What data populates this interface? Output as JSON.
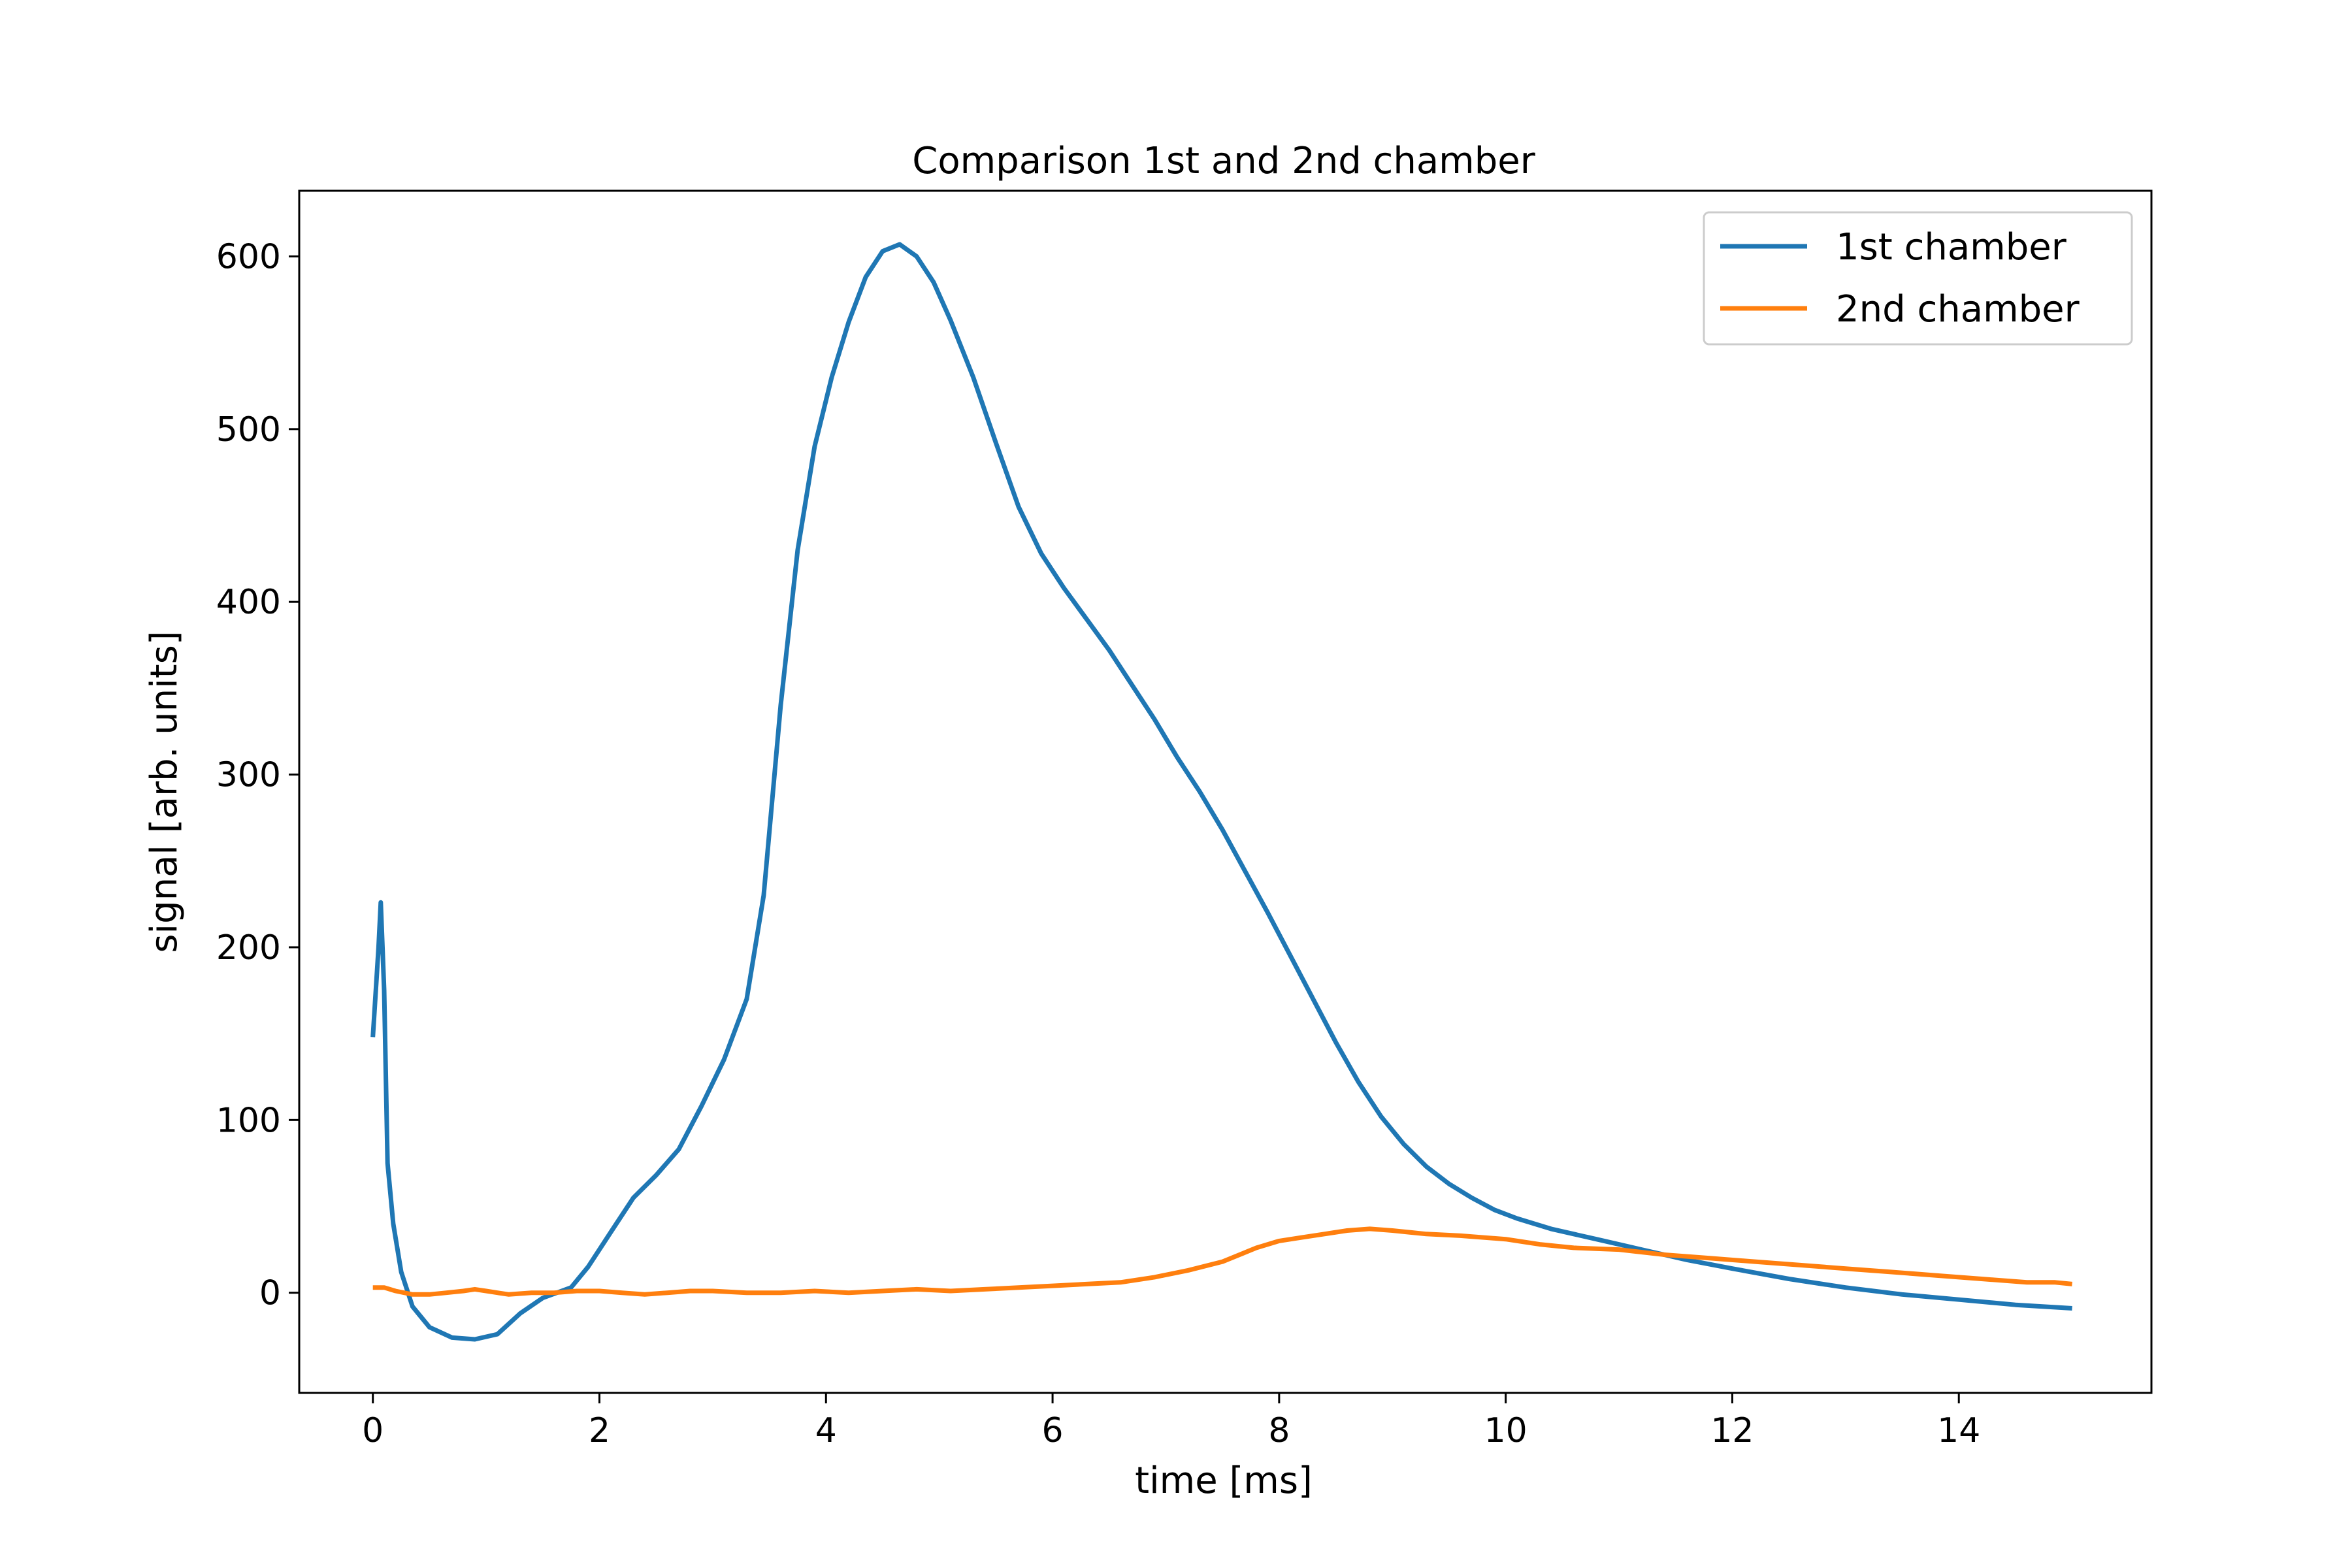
{
  "chart_data": {
    "type": "line",
    "title": "Comparison 1st and 2nd chamber",
    "xlabel": "time [ms]",
    "ylabel": "signal [arb. units]",
    "xlim": [
      -0.65,
      15.7
    ],
    "ylim": [
      -58,
      638
    ],
    "xticks": [
      0,
      2,
      4,
      6,
      8,
      10,
      12,
      14
    ],
    "yticks": [
      0,
      100,
      200,
      300,
      400,
      500,
      600
    ],
    "grid": false,
    "legend": "top-right",
    "series": [
      {
        "name": "1st chamber",
        "color": "#1f77b4",
        "points": [
          [
            0.0,
            148
          ],
          [
            0.05,
            200
          ],
          [
            0.07,
            226
          ],
          [
            0.1,
            175
          ],
          [
            0.13,
            75
          ],
          [
            0.18,
            40
          ],
          [
            0.25,
            12
          ],
          [
            0.35,
            -8
          ],
          [
            0.5,
            -20
          ],
          [
            0.7,
            -26
          ],
          [
            0.9,
            -27
          ],
          [
            1.1,
            -24
          ],
          [
            1.3,
            -12
          ],
          [
            1.5,
            -3
          ],
          [
            1.75,
            3
          ],
          [
            1.9,
            15
          ],
          [
            2.1,
            35
          ],
          [
            2.3,
            55
          ],
          [
            2.5,
            68
          ],
          [
            2.7,
            83
          ],
          [
            2.9,
            108
          ],
          [
            3.1,
            135
          ],
          [
            3.3,
            170
          ],
          [
            3.45,
            230
          ],
          [
            3.6,
            340
          ],
          [
            3.75,
            430
          ],
          [
            3.9,
            490
          ],
          [
            4.05,
            530
          ],
          [
            4.2,
            562
          ],
          [
            4.35,
            588
          ],
          [
            4.5,
            603
          ],
          [
            4.65,
            607
          ],
          [
            4.8,
            600
          ],
          [
            4.95,
            585
          ],
          [
            5.1,
            563
          ],
          [
            5.3,
            530
          ],
          [
            5.5,
            492
          ],
          [
            5.7,
            455
          ],
          [
            5.9,
            428
          ],
          [
            6.1,
            408
          ],
          [
            6.3,
            390
          ],
          [
            6.5,
            372
          ],
          [
            6.7,
            352
          ],
          [
            6.9,
            332
          ],
          [
            7.1,
            310
          ],
          [
            7.3,
            290
          ],
          [
            7.5,
            268
          ],
          [
            7.7,
            244
          ],
          [
            7.9,
            220
          ],
          [
            8.1,
            195
          ],
          [
            8.3,
            170
          ],
          [
            8.5,
            145
          ],
          [
            8.7,
            122
          ],
          [
            8.9,
            102
          ],
          [
            9.1,
            86
          ],
          [
            9.3,
            73
          ],
          [
            9.5,
            63
          ],
          [
            9.7,
            55
          ],
          [
            9.9,
            48
          ],
          [
            10.1,
            43
          ],
          [
            10.4,
            37
          ],
          [
            10.8,
            31
          ],
          [
            11.2,
            25
          ],
          [
            11.6,
            19
          ],
          [
            12.0,
            14
          ],
          [
            12.5,
            8
          ],
          [
            13.0,
            3
          ],
          [
            13.5,
            -1
          ],
          [
            14.0,
            -4
          ],
          [
            14.5,
            -7
          ],
          [
            15.0,
            -9
          ]
        ]
      },
      {
        "name": "2nd chamber",
        "color": "#ff7f0e",
        "points": [
          [
            0.0,
            3
          ],
          [
            0.1,
            3
          ],
          [
            0.2,
            1
          ],
          [
            0.35,
            -1
          ],
          [
            0.5,
            -1
          ],
          [
            0.65,
            0
          ],
          [
            0.8,
            1
          ],
          [
            0.9,
            2
          ],
          [
            1.0,
            1
          ],
          [
            1.1,
            0
          ],
          [
            1.2,
            -1
          ],
          [
            1.4,
            0
          ],
          [
            1.6,
            0
          ],
          [
            1.8,
            1
          ],
          [
            2.0,
            1
          ],
          [
            2.2,
            0
          ],
          [
            2.4,
            -1
          ],
          [
            2.6,
            0
          ],
          [
            2.8,
            1
          ],
          [
            3.0,
            1
          ],
          [
            3.3,
            0
          ],
          [
            3.6,
            0
          ],
          [
            3.9,
            1
          ],
          [
            4.2,
            0
          ],
          [
            4.5,
            1
          ],
          [
            4.8,
            2
          ],
          [
            5.1,
            1
          ],
          [
            5.4,
            2
          ],
          [
            5.7,
            3
          ],
          [
            6.0,
            4
          ],
          [
            6.3,
            5
          ],
          [
            6.6,
            6
          ],
          [
            6.9,
            9
          ],
          [
            7.2,
            13
          ],
          [
            7.5,
            18
          ],
          [
            7.8,
            26
          ],
          [
            8.0,
            30
          ],
          [
            8.2,
            32
          ],
          [
            8.4,
            34
          ],
          [
            8.6,
            36
          ],
          [
            8.8,
            37
          ],
          [
            9.0,
            36
          ],
          [
            9.3,
            34
          ],
          [
            9.6,
            33
          ],
          [
            10.0,
            31
          ],
          [
            10.3,
            28
          ],
          [
            10.6,
            26
          ],
          [
            11.0,
            25
          ],
          [
            11.4,
            22
          ],
          [
            11.8,
            20
          ],
          [
            12.2,
            18
          ],
          [
            12.6,
            16
          ],
          [
            13.0,
            14
          ],
          [
            13.4,
            12
          ],
          [
            13.8,
            10
          ],
          [
            14.2,
            8
          ],
          [
            14.6,
            6
          ],
          [
            14.85,
            6
          ],
          [
            15.0,
            5
          ]
        ]
      }
    ]
  }
}
